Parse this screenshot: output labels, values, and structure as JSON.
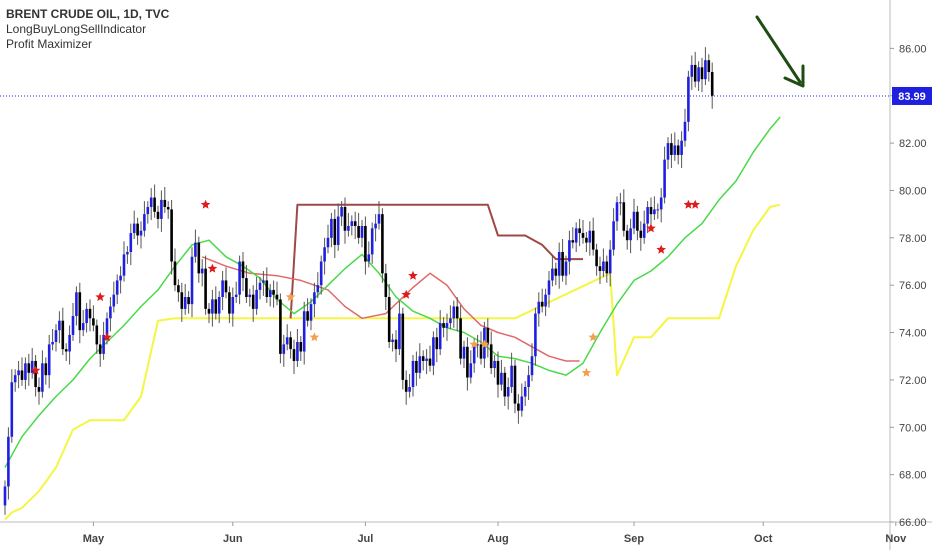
{
  "legend": {
    "title": "BRENT CRUDE OIL, 1D, TVC",
    "indicator1": "LongBuyLongSellIndicator",
    "indicator2": "Profit Maximizer"
  },
  "colors": {
    "up_candle": "#1f1fe0",
    "down_candle": "#000000",
    "fast_line": "#e06a6a",
    "mid_line": "#49d949",
    "stop_line": "#f5f542",
    "upper_step": "#a04848",
    "star_red": "#e01b1b",
    "star_orange": "#f0a050",
    "price_tag": "#1f1fe0",
    "arrow": "#1e4d12",
    "axis_text": "#444444"
  },
  "chart_data": {
    "type": "candlestick",
    "instrument": "BRENT CRUDE OIL, 1D, TVC",
    "last_price": "83.99",
    "ylim": [
      66,
      88
    ],
    "y_ticks": [
      "66.00",
      "68.00",
      "70.00",
      "72.00",
      "74.00",
      "76.00",
      "78.00",
      "80.00",
      "82.00",
      "84.00",
      "86.00"
    ],
    "x_ticks": [
      "May",
      "Jun",
      "Jul",
      "Aug",
      "Sep",
      "Oct",
      "Nov"
    ],
    "x_tick_index": [
      26,
      67,
      106,
      145,
      185,
      223,
      262
    ],
    "closes": [
      67.5,
      69.6,
      71.9,
      72.2,
      72.4,
      72.0,
      72.7,
      72.3,
      72.8,
      71.7,
      71.5,
      72.7,
      72.2,
      73.5,
      73.6,
      74.1,
      74.5,
      73.3,
      73.2,
      73.9,
      74.7,
      75.7,
      74.1,
      74.4,
      75.0,
      74.6,
      74.3,
      73.5,
      73.1,
      73.9,
      74.6,
      75.1,
      75.6,
      76.2,
      76.4,
      77.3,
      77.4,
      78.2,
      78.6,
      78.1,
      78.3,
      79.0,
      79.3,
      79.7,
      79.1,
      78.8,
      79.6,
      79.3,
      79.2,
      77.0,
      76.0,
      75.7,
      75.0,
      75.5,
      75.2,
      77.2,
      77.8,
      76.5,
      76.7,
      75.0,
      74.8,
      75.4,
      74.8,
      75.5,
      76.2,
      75.7,
      74.8,
      75.5,
      75.6,
      77.0,
      76.3,
      75.5,
      75.6,
      75.0,
      75.8,
      76.1,
      76.2,
      75.5,
      75.8,
      75.6,
      75.4,
      73.1,
      73.5,
      73.8,
      73.3,
      72.8,
      73.6,
      73.2,
      74.9,
      74.5,
      75.2,
      75.7,
      76.0,
      77.0,
      77.6,
      78.0,
      78.8,
      77.7,
      78.9,
      79.3,
      78.3,
      78.5,
      78.7,
      78.5,
      78.0,
      78.5,
      77.0,
      77.3,
      78.4,
      78.6,
      79.0,
      76.5,
      75.5,
      73.6,
      73.7,
      73.3,
      74.8,
      72.0,
      71.5,
      71.7,
      72.8,
      72.3,
      73.0,
      72.8,
      72.9,
      72.6,
      73.8,
      73.3,
      74.4,
      74.2,
      74.4,
      74.6,
      75.1,
      74.6,
      72.9,
      73.4,
      72.1,
      72.7,
      73.5,
      73.5,
      72.9,
      74.2,
      73.5,
      72.5,
      72.8,
      71.8,
      72.3,
      71.3,
      71.7,
      72.6,
      71.0,
      70.7,
      71.3,
      71.7,
      72.2,
      73.0,
      74.8,
      75.3,
      75.1,
      75.6,
      76.2,
      76.7,
      76.4,
      77.4,
      76.4,
      77.0,
      77.9,
      77.8,
      78.4,
      78.2,
      78.0,
      77.8,
      78.3,
      77.5,
      76.8,
      76.6,
      77.0,
      76.5,
      77.5,
      78.7,
      79.5,
      79.5,
      78.3,
      77.9,
      78.4,
      79.1,
      78.3,
      78.0,
      78.6,
      79.3,
      79.0,
      79.2,
      79.2,
      79.7,
      81.3,
      82.0,
      81.5,
      81.9,
      81.5,
      82.1,
      82.9,
      84.8,
      85.3,
      84.6,
      85.2,
      84.7,
      85.5,
      85.0,
      84.0
    ],
    "fast_line": [
      [
        58,
        77.2
      ],
      [
        65,
        76.8
      ],
      [
        72,
        76.5
      ],
      [
        80,
        76.4
      ],
      [
        87,
        76.2
      ],
      [
        95,
        75.8
      ],
      [
        100,
        75.1
      ],
      [
        105,
        74.6
      ],
      [
        112,
        74.8
      ],
      [
        120,
        75.9
      ],
      [
        125,
        76.5
      ],
      [
        130,
        76.0
      ],
      [
        135,
        75.0
      ],
      [
        140,
        74.3
      ],
      [
        145,
        74.0
      ],
      [
        150,
        73.8
      ],
      [
        155,
        73.4
      ],
      [
        160,
        73.0
      ],
      [
        165,
        72.8
      ],
      [
        169,
        72.8
      ]
    ],
    "mid_line": [
      [
        0,
        68.3
      ],
      [
        5,
        69.6
      ],
      [
        10,
        70.5
      ],
      [
        15,
        71.3
      ],
      [
        20,
        72.0
      ],
      [
        25,
        72.9
      ],
      [
        30,
        73.6
      ],
      [
        35,
        74.3
      ],
      [
        40,
        75.1
      ],
      [
        45,
        75.8
      ],
      [
        50,
        76.8
      ],
      [
        55,
        77.7
      ],
      [
        60,
        77.9
      ],
      [
        65,
        77.2
      ],
      [
        70,
        76.8
      ],
      [
        75,
        76.3
      ],
      [
        80,
        75.4
      ],
      [
        85,
        74.8
      ],
      [
        90,
        75.3
      ],
      [
        95,
        76.0
      ],
      [
        100,
        76.7
      ],
      [
        105,
        77.3
      ],
      [
        110,
        76.5
      ],
      [
        115,
        75.5
      ],
      [
        120,
        74.9
      ],
      [
        125,
        74.6
      ],
      [
        130,
        74.2
      ],
      [
        135,
        74.0
      ],
      [
        140,
        73.6
      ],
      [
        145,
        73.0
      ],
      [
        150,
        72.9
      ],
      [
        155,
        72.7
      ],
      [
        160,
        72.4
      ],
      [
        165,
        72.2
      ],
      [
        170,
        72.7
      ],
      [
        175,
        74.0
      ],
      [
        180,
        75.2
      ],
      [
        185,
        76.2
      ],
      [
        190,
        76.6
      ],
      [
        195,
        77.2
      ],
      [
        200,
        78.0
      ],
      [
        205,
        78.6
      ],
      [
        210,
        79.6
      ],
      [
        215,
        80.4
      ],
      [
        220,
        81.6
      ],
      [
        225,
        82.6
      ],
      [
        228,
        83.1
      ]
    ],
    "stop_line": [
      [
        0,
        66.1
      ],
      [
        2,
        66.4
      ],
      [
        5,
        66.6
      ],
      [
        10,
        67.3
      ],
      [
        15,
        68.3
      ],
      [
        20,
        69.9
      ],
      [
        25,
        70.3
      ],
      [
        30,
        70.3
      ],
      [
        35,
        70.3
      ],
      [
        40,
        71.3
      ],
      [
        45,
        74.5
      ],
      [
        50,
        74.6
      ],
      [
        60,
        74.6
      ],
      [
        70,
        74.6
      ],
      [
        80,
        74.6
      ],
      [
        84,
        74.6
      ],
      [
        84,
        74.6
      ],
      [
        88,
        74.6
      ],
      [
        150,
        74.6
      ],
      [
        150,
        74.6
      ],
      [
        178,
        76.5
      ],
      [
        180,
        72.2
      ],
      [
        185,
        73.8
      ],
      [
        190,
        73.8
      ],
      [
        195,
        74.6
      ],
      [
        205,
        74.6
      ],
      [
        210,
        74.6
      ],
      [
        215,
        76.8
      ],
      [
        220,
        78.3
      ],
      [
        225,
        79.3
      ],
      [
        228,
        79.4
      ]
    ],
    "upper_step": [
      [
        84,
        74.6
      ],
      [
        86,
        79.4
      ],
      [
        142,
        79.4
      ],
      [
        145,
        78.1
      ],
      [
        153,
        78.1
      ],
      [
        158,
        77.7
      ],
      [
        162,
        77.1
      ],
      [
        170,
        77.1
      ]
    ],
    "stars_red": [
      [
        59,
        79.4
      ],
      [
        61,
        76.7
      ],
      [
        28,
        75.5
      ],
      [
        30,
        73.8
      ],
      [
        9,
        72.4
      ],
      [
        120,
        76.4
      ],
      [
        118,
        75.6
      ],
      [
        190,
        78.4
      ],
      [
        193,
        77.5
      ],
      [
        201,
        79.4
      ],
      [
        203,
        79.4
      ]
    ],
    "stars_orange": [
      [
        84,
        75.5
      ],
      [
        91,
        73.8
      ],
      [
        138,
        73.5
      ],
      [
        141,
        73.5
      ],
      [
        171,
        72.3
      ],
      [
        173,
        73.8
      ]
    ],
    "signal_arrow": "down"
  }
}
